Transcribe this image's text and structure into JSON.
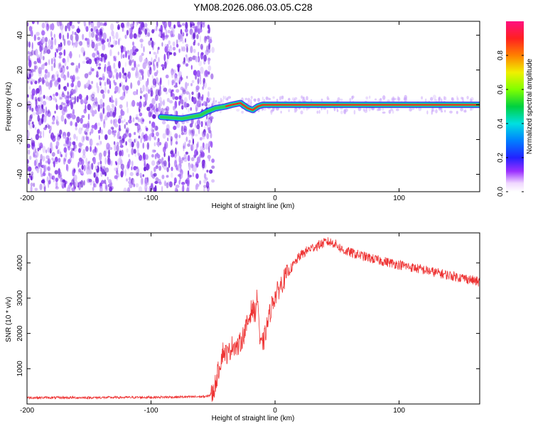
{
  "title": "YM08.2026.086.03.05.C28",
  "colors": {
    "signal": "#ff2222",
    "snr_line": "#ee3333",
    "noise": "#7a2ee0"
  },
  "chart_data": [
    {
      "type": "heatmap",
      "xlabel": "Height of straight line (km)",
      "ylabel": "Frequency (Hz)",
      "xlim": [
        -200,
        165
      ],
      "ylim": [
        -50,
        48
      ],
      "x_ticks": [
        -200,
        -100,
        0,
        100
      ],
      "y_ticks": [
        -40,
        -20,
        0,
        20,
        40
      ],
      "noise_region": [
        -200,
        -50
      ],
      "trace": [
        {
          "x": -92,
          "y": -7
        },
        {
          "x": -75,
          "y": -8
        },
        {
          "x": -60,
          "y": -6
        },
        {
          "x": -55,
          "y": -4
        },
        {
          "x": -48,
          "y": -2
        },
        {
          "x": -40,
          "y": -1
        },
        {
          "x": -35,
          "y": 0
        },
        {
          "x": -28,
          "y": 1
        },
        {
          "x": -22,
          "y": -2
        },
        {
          "x": -18,
          "y": -3
        },
        {
          "x": -14,
          "y": -1
        },
        {
          "x": -10,
          "y": 0
        },
        {
          "x": 0,
          "y": 0
        },
        {
          "x": 40,
          "y": 0
        },
        {
          "x": 100,
          "y": 0
        },
        {
          "x": 165,
          "y": 0
        }
      ],
      "colorbar": {
        "label": "Normalized spectral amplitude",
        "ticks": [
          0.0,
          0.2,
          0.4,
          0.6,
          0.8
        ],
        "range": [
          0,
          1
        ]
      }
    },
    {
      "type": "line",
      "xlabel": "Height of straight line (km)",
      "ylabel": "SNR (10 * v/v)",
      "xlim": [
        -200,
        165
      ],
      "ylim": [
        0,
        4850
      ],
      "x_ticks": [
        -200,
        -100,
        0,
        100
      ],
      "y_ticks": [
        1000,
        2000,
        3000,
        4000
      ],
      "series": [
        {
          "x": [
            -200,
            -150,
            -100,
            -70,
            -55,
            -50,
            -46,
            -42,
            -38,
            -34,
            -30,
            -26,
            -22,
            -19,
            -16,
            -14,
            -12,
            -9,
            -6,
            -2,
            5,
            12,
            20,
            28,
            35,
            42,
            48,
            55,
            65,
            80,
            100,
            120,
            140,
            155,
            165
          ],
          "values": [
            180,
            180,
            190,
            200,
            210,
            300,
            900,
            1500,
            1400,
            1700,
            1600,
            1900,
            2300,
            2700,
            2600,
            3100,
            1600,
            1800,
            2300,
            2900,
            3400,
            3800,
            4200,
            4400,
            4500,
            4600,
            4550,
            4350,
            4250,
            4100,
            3950,
            3800,
            3650,
            3550,
            3450
          ]
        }
      ]
    }
  ]
}
